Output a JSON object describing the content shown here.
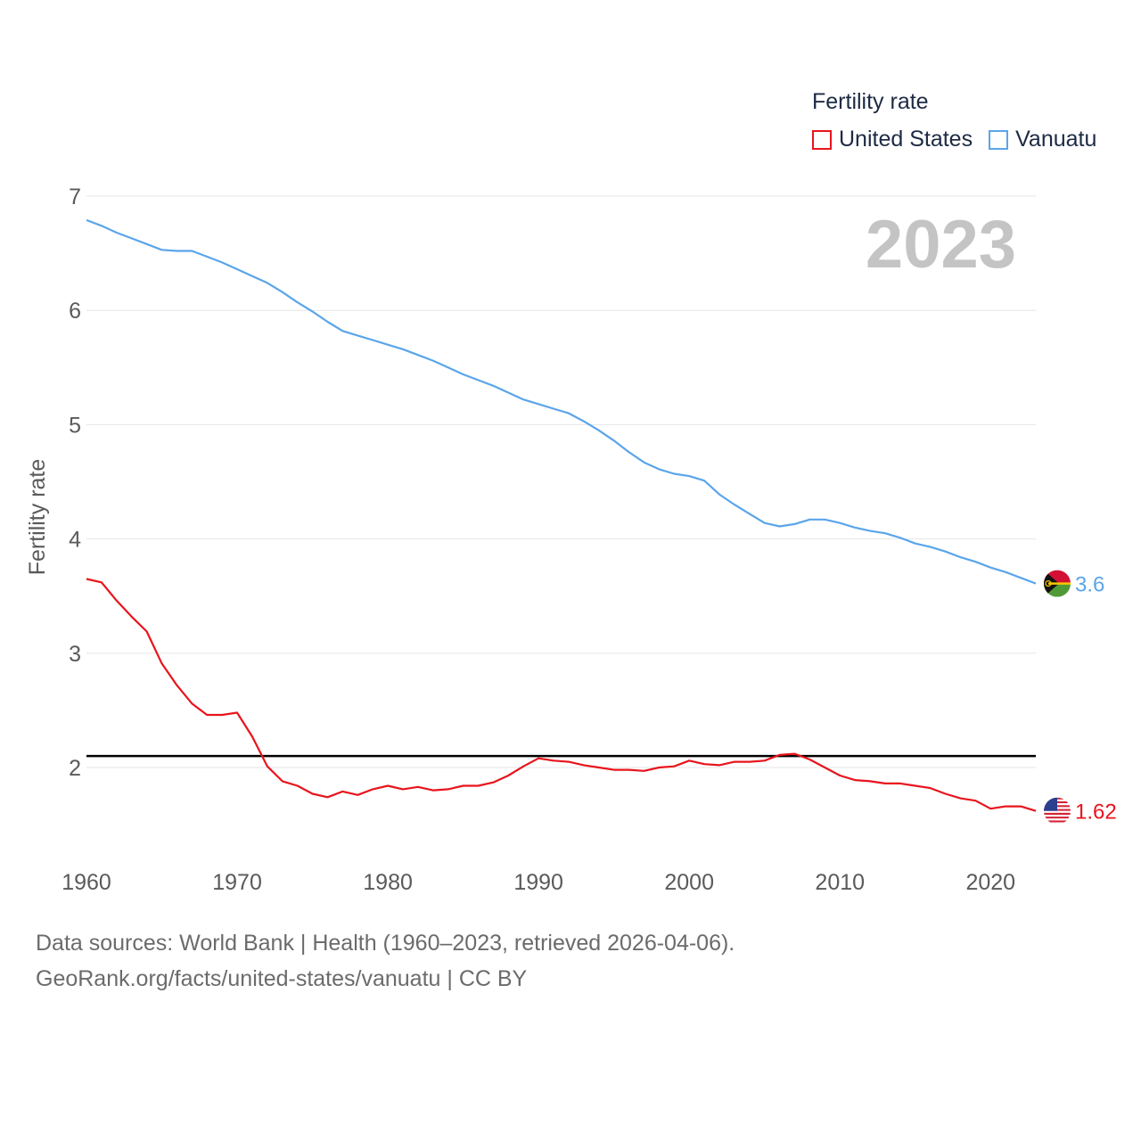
{
  "legend": {
    "title": "Fertility rate",
    "items": [
      {
        "label": "United States",
        "color": "#e8141c"
      },
      {
        "label": "Vanuatu",
        "color": "#5aa5ea"
      }
    ]
  },
  "footer": {
    "line1": "Data sources: World Bank | Health (1960–2023, retrieved 2026-04-06).",
    "line2": "GeoRank.org/facts/united-states/vanuatu | CC BY"
  },
  "chart_data": {
    "type": "line",
    "title": "Fertility rate",
    "year_watermark": "2023",
    "xlabel": "",
    "ylabel": "Fertility rate",
    "xlim": [
      1960,
      2023
    ],
    "ylim": [
      1.3,
      7.0
    ],
    "x_ticks": [
      1960,
      1970,
      1980,
      1990,
      2000,
      2010,
      2020
    ],
    "y_ticks": [
      2,
      3,
      4,
      5,
      6,
      7
    ],
    "reference_line": 2.1,
    "x": [
      1960,
      1961,
      1962,
      1963,
      1964,
      1965,
      1966,
      1967,
      1968,
      1969,
      1970,
      1971,
      1972,
      1973,
      1974,
      1975,
      1976,
      1977,
      1978,
      1979,
      1980,
      1981,
      1982,
      1983,
      1984,
      1985,
      1986,
      1987,
      1988,
      1989,
      1990,
      1991,
      1992,
      1993,
      1994,
      1995,
      1996,
      1997,
      1998,
      1999,
      2000,
      2001,
      2002,
      2003,
      2004,
      2005,
      2006,
      2007,
      2008,
      2009,
      2010,
      2011,
      2012,
      2013,
      2014,
      2015,
      2016,
      2017,
      2018,
      2019,
      2020,
      2021,
      2022,
      2023
    ],
    "series": [
      {
        "name": "United States",
        "color": "#e8141c",
        "end_label": "1.62",
        "values": [
          3.65,
          3.62,
          3.46,
          3.32,
          3.19,
          2.91,
          2.72,
          2.56,
          2.46,
          2.46,
          2.48,
          2.27,
          2.01,
          1.88,
          1.84,
          1.77,
          1.74,
          1.79,
          1.76,
          1.81,
          1.84,
          1.81,
          1.83,
          1.8,
          1.81,
          1.84,
          1.84,
          1.87,
          1.93,
          2.01,
          2.08,
          2.06,
          2.05,
          2.02,
          2.0,
          1.98,
          1.98,
          1.97,
          2.0,
          2.01,
          2.06,
          2.03,
          2.02,
          2.05,
          2.05,
          2.06,
          2.11,
          2.12,
          2.07,
          2.0,
          1.93,
          1.89,
          1.88,
          1.86,
          1.86,
          1.84,
          1.82,
          1.77,
          1.73,
          1.71,
          1.64,
          1.66,
          1.66,
          1.62
        ]
      },
      {
        "name": "Vanuatu",
        "color": "#5aa5ea",
        "end_label": "3.6",
        "values": [
          6.79,
          6.74,
          6.68,
          6.63,
          6.58,
          6.53,
          6.52,
          6.52,
          6.47,
          6.42,
          6.36,
          6.3,
          6.24,
          6.16,
          6.07,
          5.99,
          5.9,
          5.82,
          5.78,
          5.74,
          5.7,
          5.66,
          5.61,
          5.56,
          5.5,
          5.44,
          5.39,
          5.34,
          5.28,
          5.22,
          5.18,
          5.14,
          5.1,
          5.03,
          4.95,
          4.86,
          4.76,
          4.67,
          4.61,
          4.57,
          4.55,
          4.51,
          4.39,
          4.3,
          4.22,
          4.14,
          4.11,
          4.13,
          4.17,
          4.17,
          4.14,
          4.1,
          4.07,
          4.05,
          4.01,
          3.96,
          3.93,
          3.89,
          3.84,
          3.8,
          3.75,
          3.71,
          3.66,
          3.61
        ]
      }
    ]
  }
}
